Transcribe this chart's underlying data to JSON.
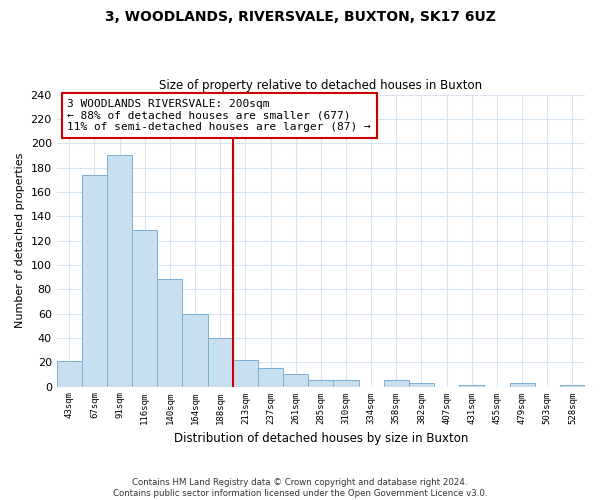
{
  "title": "3, WOODLANDS, RIVERSVALE, BUXTON, SK17 6UZ",
  "subtitle": "Size of property relative to detached houses in Buxton",
  "xlabel": "Distribution of detached houses by size in Buxton",
  "ylabel": "Number of detached properties",
  "bar_labels": [
    "43sqm",
    "67sqm",
    "91sqm",
    "116sqm",
    "140sqm",
    "164sqm",
    "188sqm",
    "213sqm",
    "237sqm",
    "261sqm",
    "285sqm",
    "310sqm",
    "334sqm",
    "358sqm",
    "382sqm",
    "407sqm",
    "431sqm",
    "455sqm",
    "479sqm",
    "503sqm",
    "528sqm"
  ],
  "bar_values": [
    21,
    174,
    190,
    129,
    88,
    60,
    40,
    22,
    15,
    10,
    5,
    5,
    0,
    5,
    3,
    0,
    1,
    0,
    3,
    0,
    1
  ],
  "bar_color": "#c8dff0",
  "bar_edge_color": "#7bafd4",
  "ylim": [
    0,
    240
  ],
  "yticks": [
    0,
    20,
    40,
    60,
    80,
    100,
    120,
    140,
    160,
    180,
    200,
    220,
    240
  ],
  "vline_x_index": 6,
  "vline_color": "#cc0000",
  "annotation_line1": "3 WOODLANDS RIVERSVALE: 200sqm",
  "annotation_line2": "← 88% of detached houses are smaller (677)",
  "annotation_line3": "11% of semi-detached houses are larger (87) →",
  "annotation_box_edge_color": "#cc0000",
  "footer_line1": "Contains HM Land Registry data © Crown copyright and database right 2024.",
  "footer_line2": "Contains public sector information licensed under the Open Government Licence v3.0.",
  "background_color": "#ffffff",
  "grid_color": "#d8e4f0"
}
